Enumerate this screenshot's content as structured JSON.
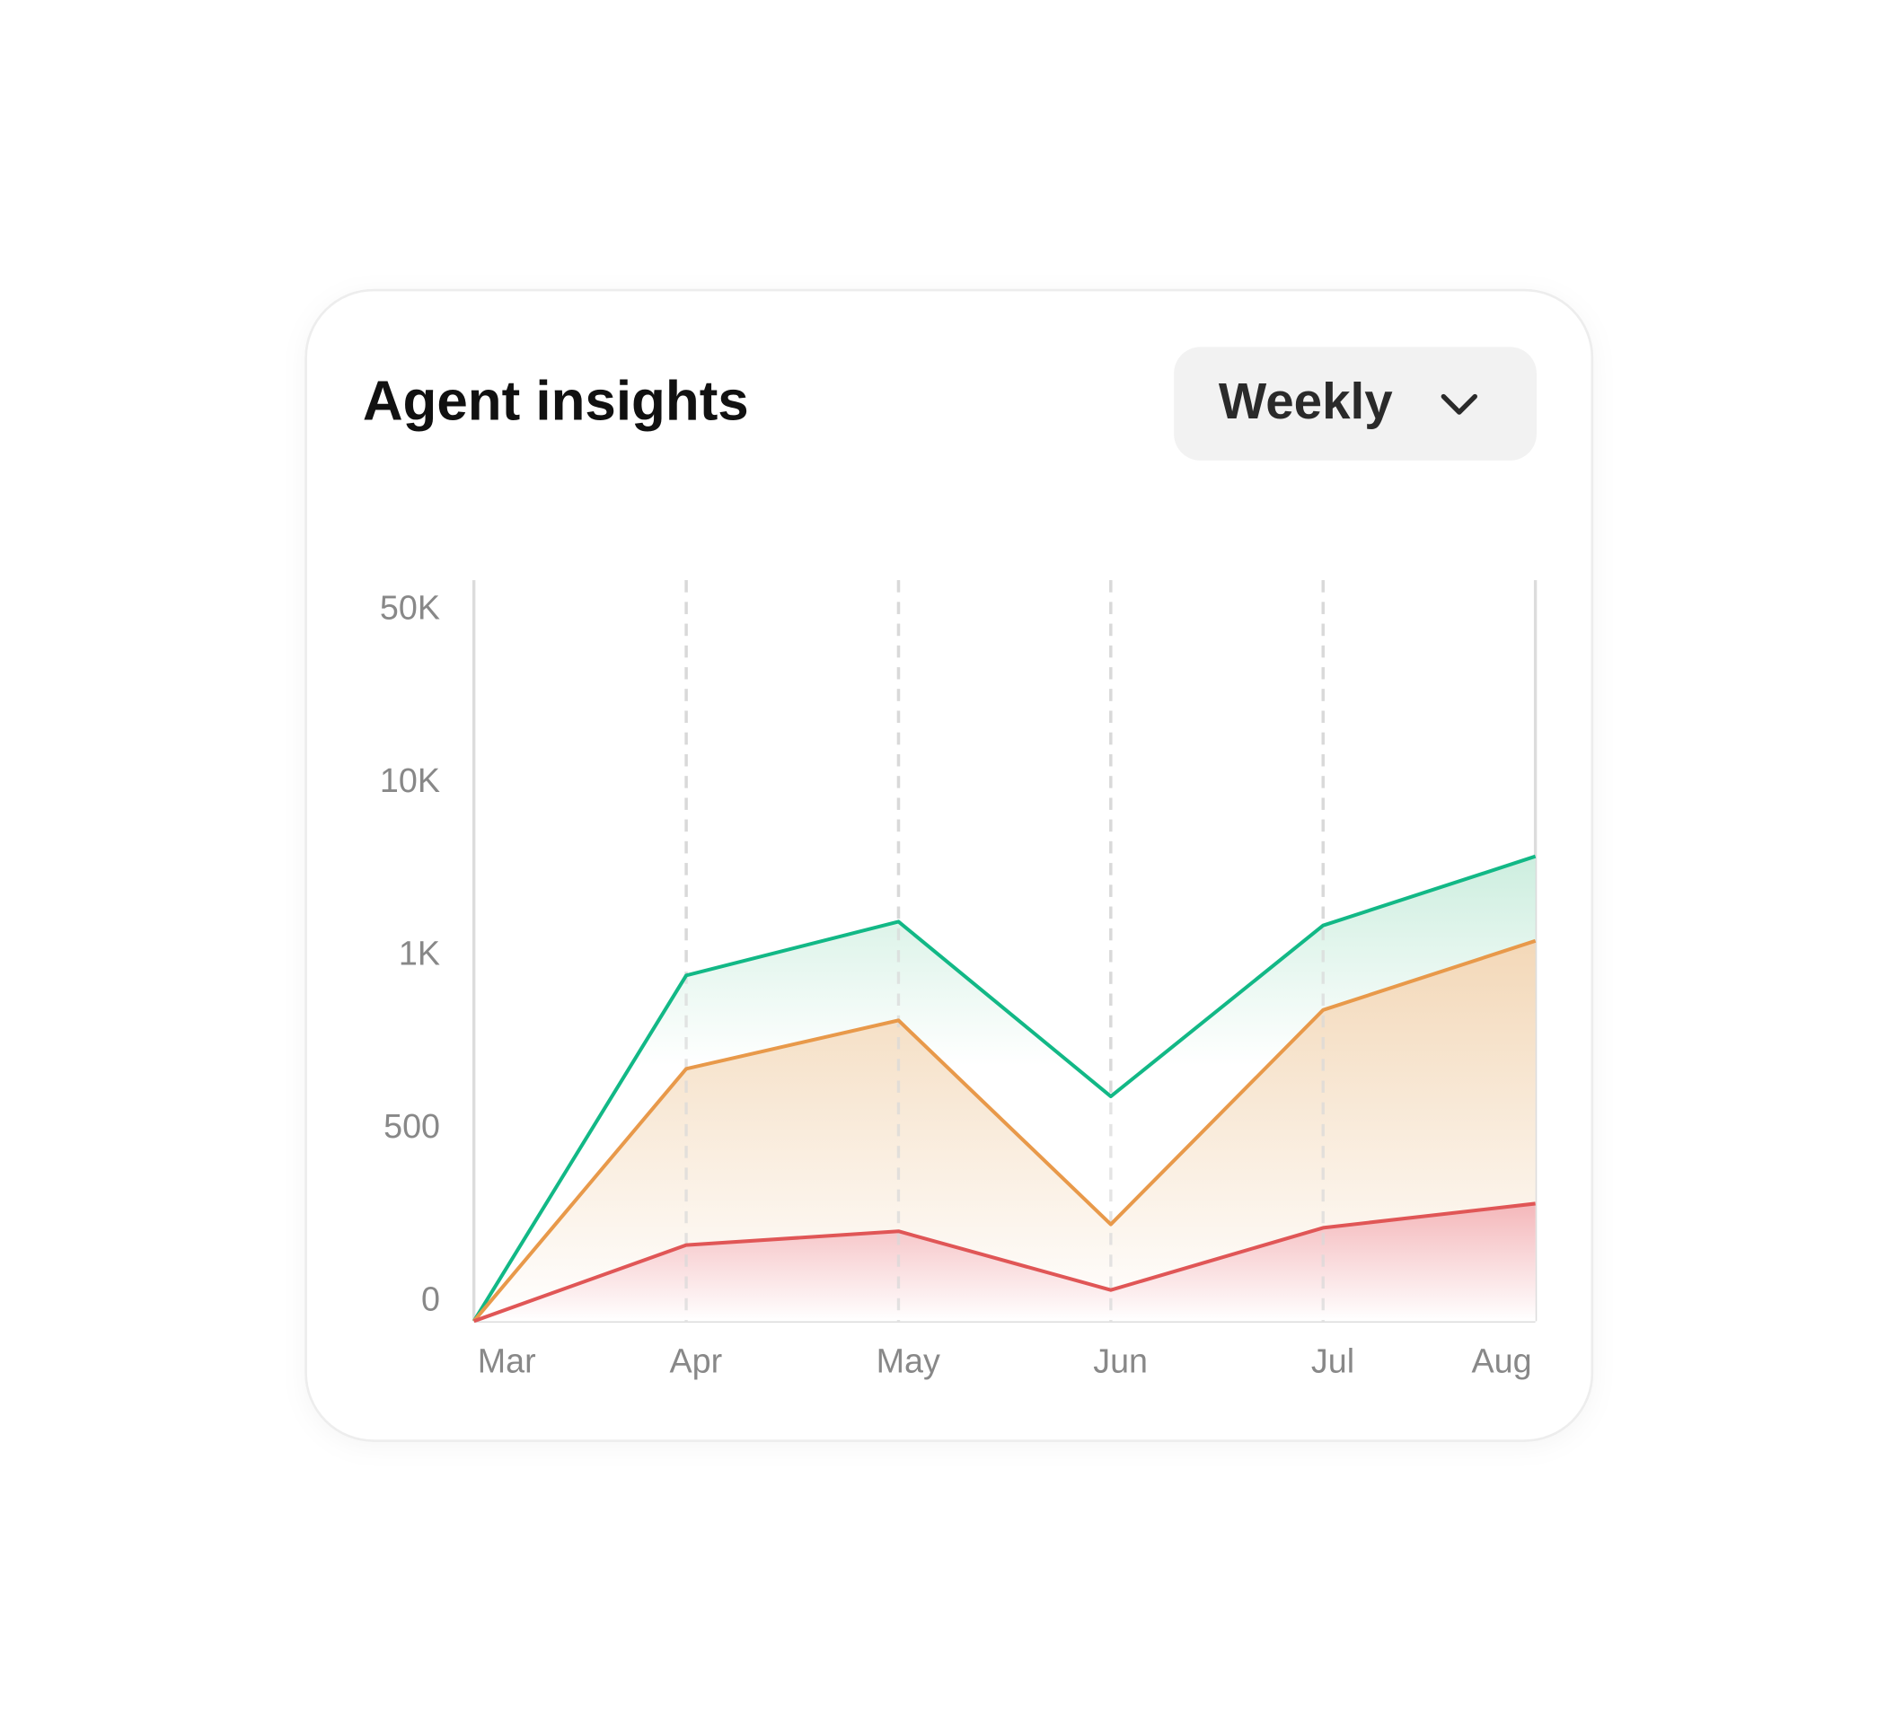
{
  "controls": {
    "period": "Weekly"
  },
  "chart_data": {
    "type": "area",
    "title": "Agent insights",
    "categories": [
      "Mar",
      "Apr",
      "May",
      "Jun",
      "Jul",
      "Aug"
    ],
    "series": [
      {
        "color": "#12b886",
        "values": [
          0,
          1000,
          3800,
          650,
          3600,
          7200
        ]
      },
      {
        "color": "#e8994a",
        "values": [
          0,
          730,
          870,
          280,
          900,
          2800
        ]
      },
      {
        "color": "#e05656",
        "values": [
          0,
          220,
          260,
          90,
          270,
          340
        ]
      }
    ],
    "ylim": [
      0,
      50000
    ],
    "yticks": [
      0,
      500,
      {
        "value": 1000,
        "label": "1K"
      },
      {
        "value": 10000,
        "label": "10K"
      },
      {
        "value": 50000,
        "label": "50K"
      }
    ],
    "grid": true
  }
}
